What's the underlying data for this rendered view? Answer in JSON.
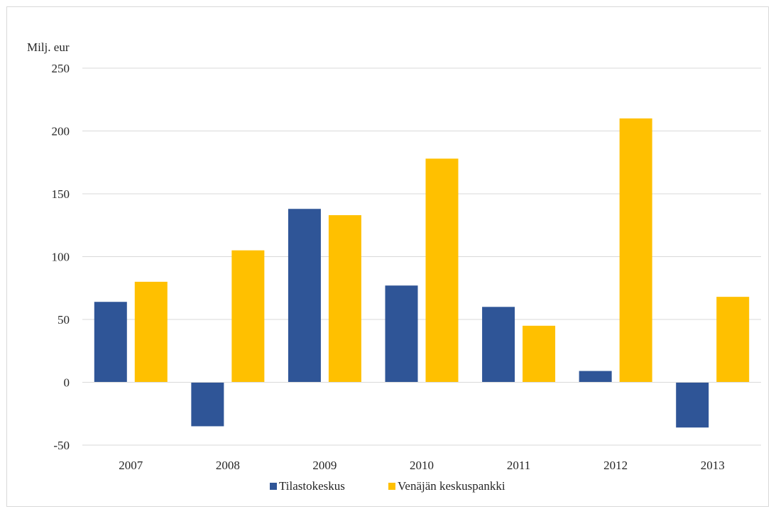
{
  "chart_data": {
    "type": "bar",
    "title": "",
    "ylabel": "Milj. eur",
    "xlabel": "",
    "categories": [
      "2007",
      "2008",
      "2009",
      "2010",
      "2011",
      "2012",
      "2013"
    ],
    "series": [
      {
        "name": "Tilastokeskus",
        "color": "#2f5597",
        "values": [
          64,
          -35,
          138,
          77,
          60,
          9,
          -36
        ]
      },
      {
        "name": "Venäjän keskuspankki",
        "color": "#ffc000",
        "values": [
          80,
          105,
          133,
          178,
          45,
          210,
          68
        ]
      }
    ],
    "ylim": [
      -50,
      250
    ],
    "yticks": [
      -50,
      0,
      50,
      100,
      150,
      200,
      250
    ],
    "grid": true,
    "legend_position": "bottom"
  }
}
